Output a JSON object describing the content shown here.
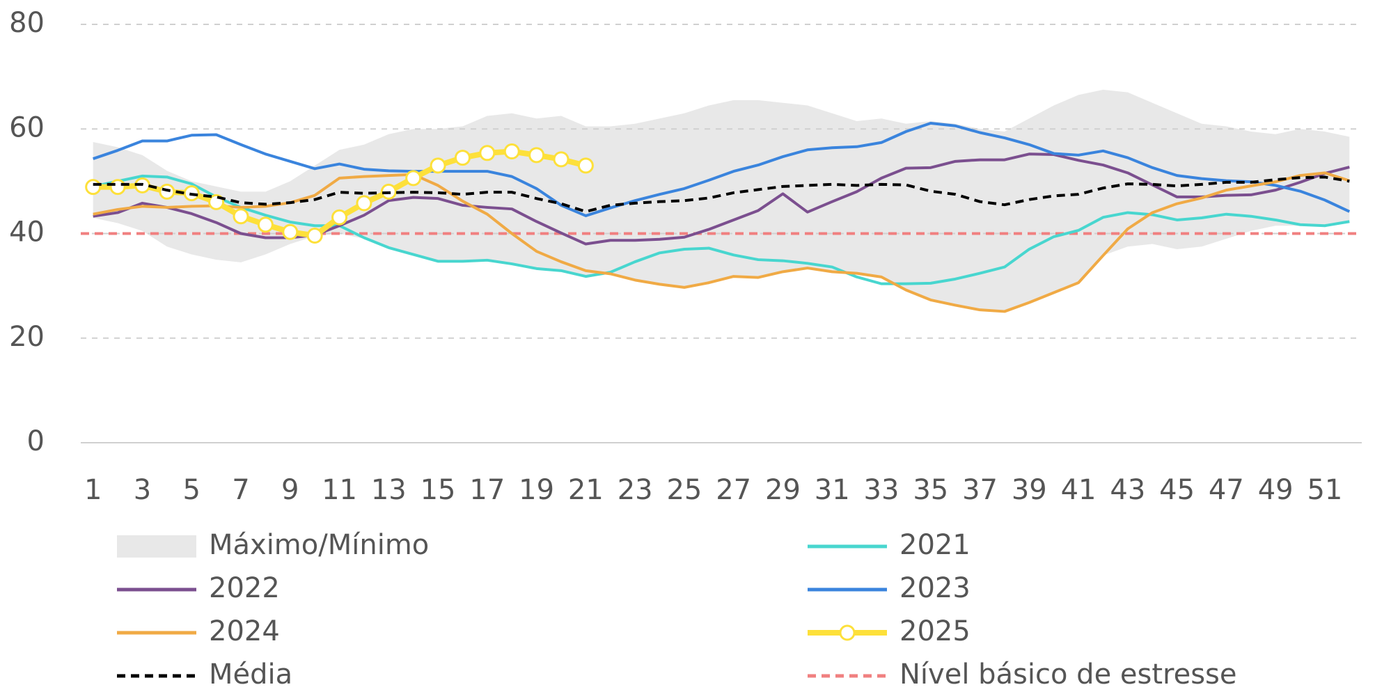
{
  "chart_data": {
    "type": "line",
    "x": [
      1,
      2,
      3,
      4,
      5,
      6,
      7,
      8,
      9,
      10,
      11,
      12,
      13,
      14,
      15,
      16,
      17,
      18,
      19,
      20,
      21,
      22,
      23,
      24,
      25,
      26,
      27,
      28,
      29,
      30,
      31,
      32,
      33,
      34,
      35,
      36,
      37,
      38,
      39,
      40,
      41,
      42,
      43,
      44,
      45,
      46,
      47,
      48,
      49,
      50,
      51,
      52
    ],
    "xlim": [
      0.5,
      52.5
    ],
    "xticks": [
      1,
      3,
      5,
      7,
      9,
      11,
      13,
      15,
      17,
      19,
      21,
      23,
      25,
      27,
      29,
      31,
      33,
      35,
      37,
      39,
      41,
      43,
      45,
      47,
      49,
      51
    ],
    "ylim": [
      0,
      80
    ],
    "yticks": [
      0,
      20,
      40,
      60,
      80
    ],
    "grid": true,
    "band": {
      "name": "Máximo/Mínimo",
      "color": "#e8e8e8",
      "upper": [
        57.5,
        56.5,
        55,
        52,
        50,
        49,
        48,
        48,
        50,
        53,
        56,
        57,
        59,
        60,
        60,
        60.5,
        62.5,
        63,
        62,
        62.5,
        60.5,
        60.5,
        61,
        62,
        63,
        64.5,
        65.5,
        65.5,
        65,
        64.5,
        63,
        61.5,
        62,
        61,
        61.5,
        61,
        60,
        59.5,
        62,
        64.5,
        66.5,
        67.5,
        67,
        65,
        63,
        61,
        60.5,
        59.5,
        59,
        60,
        59.5,
        58.5
      ],
      "lower": [
        43,
        42,
        40.5,
        37.5,
        36,
        35,
        34.5,
        36,
        38,
        39.5,
        40,
        39,
        37.5,
        36,
        34.5,
        34.5,
        34.8,
        34,
        33.2,
        32.8,
        31.8,
        32.5,
        31,
        30.2,
        29.6,
        30.5,
        31.8,
        31.6,
        32.8,
        33.4,
        32.6,
        32.2,
        31.5,
        29,
        27.1,
        26.3,
        25.3,
        25,
        26.8,
        28.8,
        30.6,
        35.8,
        37.5,
        38,
        37,
        37.5,
        39,
        40.5,
        41.5,
        41.5,
        41.5,
        42
      ]
    },
    "series": [
      {
        "name": "2021",
        "color": "#48d6cf",
        "values": [
          49,
          50,
          51,
          50.8,
          49.5,
          47,
          45,
          43.5,
          42.2,
          41.5,
          41.5,
          39.2,
          37.3,
          36,
          34.7,
          34.7,
          34.9,
          34.2,
          33.3,
          32.9,
          31.8,
          32.6,
          34.6,
          36.3,
          37,
          37.2,
          35.9,
          35,
          34.8,
          34.3,
          33.6,
          31.7,
          30.4,
          30.4,
          30.5,
          31.3,
          32.4,
          33.6,
          37,
          39.4,
          40.6,
          43.1,
          44,
          43.6,
          42.6,
          43,
          43.7,
          43.3,
          42.6,
          41.7,
          41.5,
          42.3
        ]
      },
      {
        "name": "2022",
        "color": "#7b4f8f",
        "values": [
          43.3,
          44,
          45.8,
          45,
          43.8,
          42.1,
          40,
          39.2,
          39.2,
          39.7,
          41.5,
          43.5,
          46.3,
          46.9,
          46.7,
          45.4,
          45,
          44.7,
          42.3,
          40.1,
          38,
          38.7,
          38.7,
          38.9,
          39.3,
          40.8,
          42.6,
          44.4,
          47.6,
          44.1,
          46.1,
          48,
          50.6,
          52.5,
          52.6,
          53.8,
          54.1,
          54.1,
          55.2,
          55.1,
          54,
          53.1,
          51.6,
          49.3,
          47,
          47,
          47.3,
          47.4,
          48.3,
          49.8,
          51.5,
          52.7
        ]
      },
      {
        "name": "2023",
        "color": "#3a84dd",
        "values": [
          54.3,
          55.9,
          57.7,
          57.7,
          58.8,
          58.9,
          57,
          55.2,
          53.8,
          52.4,
          53.3,
          52.3,
          52,
          51.9,
          51.9,
          51.9,
          51.9,
          50.9,
          48.6,
          45.4,
          43.4,
          44.9,
          46.3,
          47.5,
          48.6,
          50.2,
          51.9,
          53.1,
          54.7,
          56,
          56.4,
          56.6,
          57.4,
          59.5,
          61.1,
          60.6,
          59.3,
          58.3,
          57,
          55.3,
          55,
          55.8,
          54.5,
          52.6,
          51.1,
          50.5,
          50.1,
          49.9,
          49.2,
          48.1,
          46.4,
          44.2
        ]
      },
      {
        "name": "2024",
        "color": "#f0aa45",
        "values": [
          43.7,
          44.6,
          45.2,
          45,
          45.2,
          45.3,
          45,
          45.2,
          45.9,
          47.3,
          50.6,
          50.9,
          51.1,
          51.3,
          49.2,
          46.2,
          43.7,
          40,
          36.6,
          34.6,
          32.9,
          32.3,
          31.1,
          30.3,
          29.7,
          30.6,
          31.8,
          31.6,
          32.7,
          33.4,
          32.7,
          32.4,
          31.7,
          29.2,
          27.3,
          26.3,
          25.4,
          25.1,
          26.8,
          28.7,
          30.6,
          35.8,
          40.9,
          44,
          45.7,
          46.8,
          48.3,
          49.1,
          49.9,
          51.1,
          51.6,
          50.1
        ]
      },
      {
        "name": "2025",
        "color": "#fde03a",
        "markers": true,
        "values": [
          48.9,
          48.9,
          49.2,
          48,
          47.7,
          46,
          43.3,
          41.7,
          40.3,
          39.6,
          43.1,
          45.8,
          48,
          50.6,
          53,
          54.5,
          55.4,
          55.7,
          55,
          54.2,
          53,
          null,
          null,
          null,
          null,
          null,
          null,
          null,
          null,
          null,
          null,
          null,
          null,
          null,
          null,
          null,
          null,
          null,
          null,
          null,
          null,
          null,
          null,
          null,
          null,
          null,
          null,
          null,
          null,
          null,
          null,
          null
        ]
      },
      {
        "name": "Média",
        "color": "#000000",
        "dashed": true,
        "values": [
          49.4,
          49.4,
          49.4,
          48.3,
          47.5,
          47,
          45.9,
          45.6,
          45.9,
          46.5,
          47.9,
          47.7,
          47.8,
          47.9,
          47.8,
          47.5,
          47.9,
          47.9,
          46.7,
          45.7,
          44.2,
          45.4,
          45.8,
          46.1,
          46.3,
          46.8,
          47.8,
          48.4,
          49,
          49.2,
          49.4,
          49.2,
          49.4,
          49.3,
          48.1,
          47.5,
          46.1,
          45.5,
          46.5,
          47.2,
          47.5,
          48.7,
          49.5,
          49.4,
          49.1,
          49.4,
          49.8,
          49.8,
          50.3,
          50.7,
          50.8,
          50
        ]
      }
    ],
    "reference_line": {
      "name": "Nível básico de estresse",
      "value": 40,
      "color": "#f08080"
    }
  }
}
